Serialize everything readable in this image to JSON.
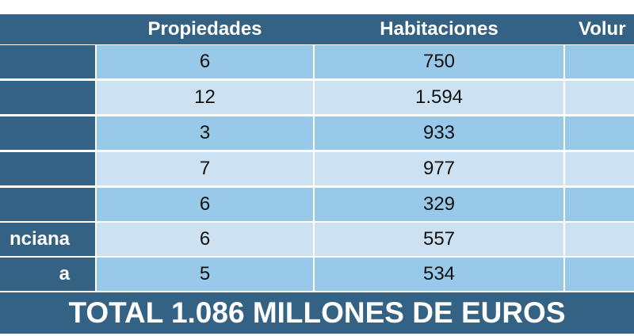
{
  "table": {
    "headers": [
      "Propiedades",
      "Habitaciones",
      "Volur"
    ],
    "rows": [
      {
        "name": "",
        "propiedades": "6",
        "habitaciones": "750"
      },
      {
        "name": "",
        "propiedades": "12",
        "habitaciones": "1.594"
      },
      {
        "name": "",
        "propiedades": "3",
        "habitaciones": "933"
      },
      {
        "name": "",
        "propiedades": "7",
        "habitaciones": "977"
      },
      {
        "name": "",
        "propiedades": "6",
        "habitaciones": "329"
      },
      {
        "name": "nciana",
        "propiedades": "6",
        "habitaciones": "557"
      },
      {
        "name": "a",
        "propiedades": "5",
        "habitaciones": "534"
      }
    ],
    "total": "TOTAL 1.086 MILLONES DE EUROS"
  },
  "colors": {
    "header": "#336285",
    "row_dark": "#99c9e8",
    "row_light": "#cce2f3"
  }
}
